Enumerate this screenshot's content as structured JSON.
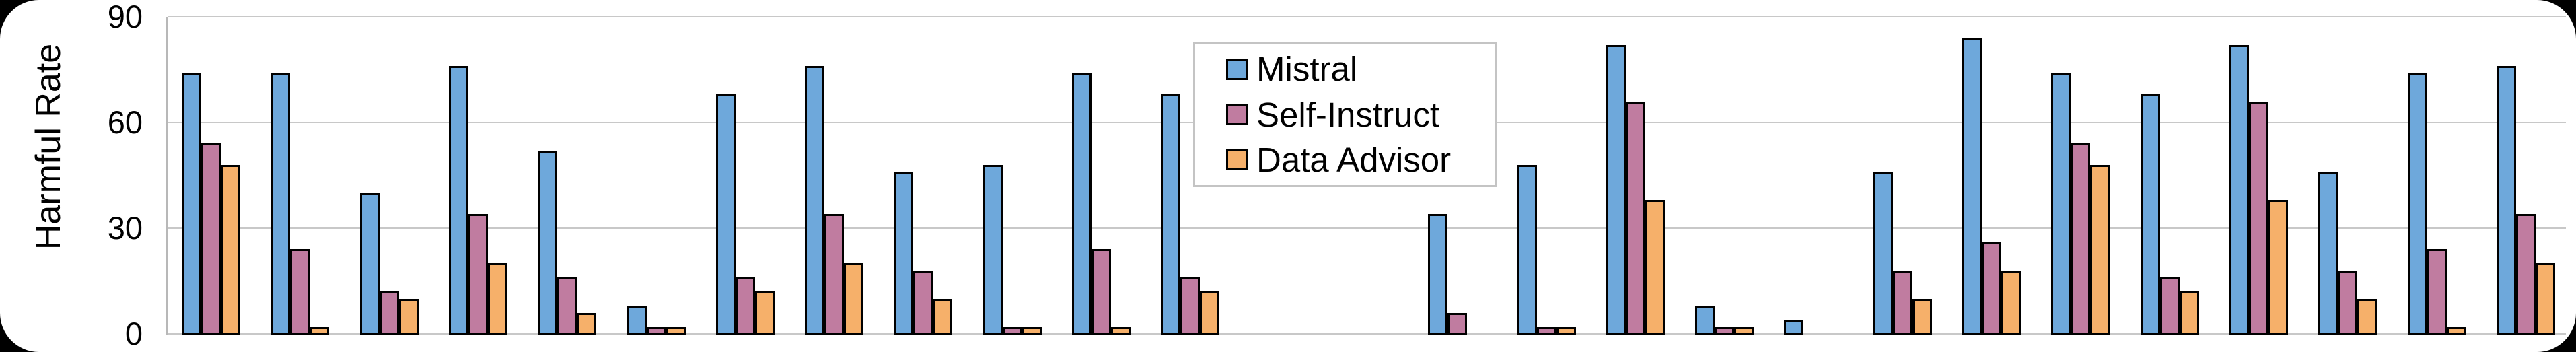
{
  "figure": {
    "background_color": "#000000",
    "card_color": "#ffffff",
    "grid_color": "#c8c8c8",
    "bar_edge_color": "#000000"
  },
  "chart_data": {
    "type": "bar",
    "title": "",
    "xlabel": "",
    "ylabel": "Harmful Rate",
    "ylim": [
      0,
      90
    ],
    "yticks": [
      0,
      30,
      60,
      90
    ],
    "grid": "horizontal",
    "n_groups": 27,
    "empty_slots": [
      13,
      14
    ],
    "x_tick_labels_visible": false,
    "legend": {
      "position": "upper-left-of-center",
      "entries": [
        "Mistral",
        "Self-Instruct",
        "Data Advisor"
      ]
    },
    "series": [
      {
        "name": "Mistral",
        "color": "#6EA8DB",
        "values": [
          74,
          74,
          40,
          76,
          52,
          8,
          68,
          76,
          46,
          48,
          74,
          68,
          null,
          null,
          34,
          48,
          82,
          8,
          4,
          46,
          84,
          74,
          68,
          82,
          46,
          74,
          76
        ]
      },
      {
        "name": "Self-Instruct",
        "color": "#C07CA0",
        "values": [
          54,
          24,
          12,
          34,
          16,
          2,
          16,
          34,
          18,
          2,
          24,
          16,
          null,
          null,
          6,
          2,
          66,
          2,
          0,
          18,
          26,
          54,
          16,
          66,
          18,
          24,
          34
        ]
      },
      {
        "name": "Data Advisor",
        "color": "#F6B06A",
        "values": [
          48,
          2,
          10,
          20,
          6,
          2,
          12,
          20,
          10,
          2,
          2,
          12,
          null,
          null,
          0,
          2,
          38,
          2,
          0,
          10,
          18,
          48,
          12,
          38,
          10,
          2,
          20
        ]
      }
    ]
  }
}
